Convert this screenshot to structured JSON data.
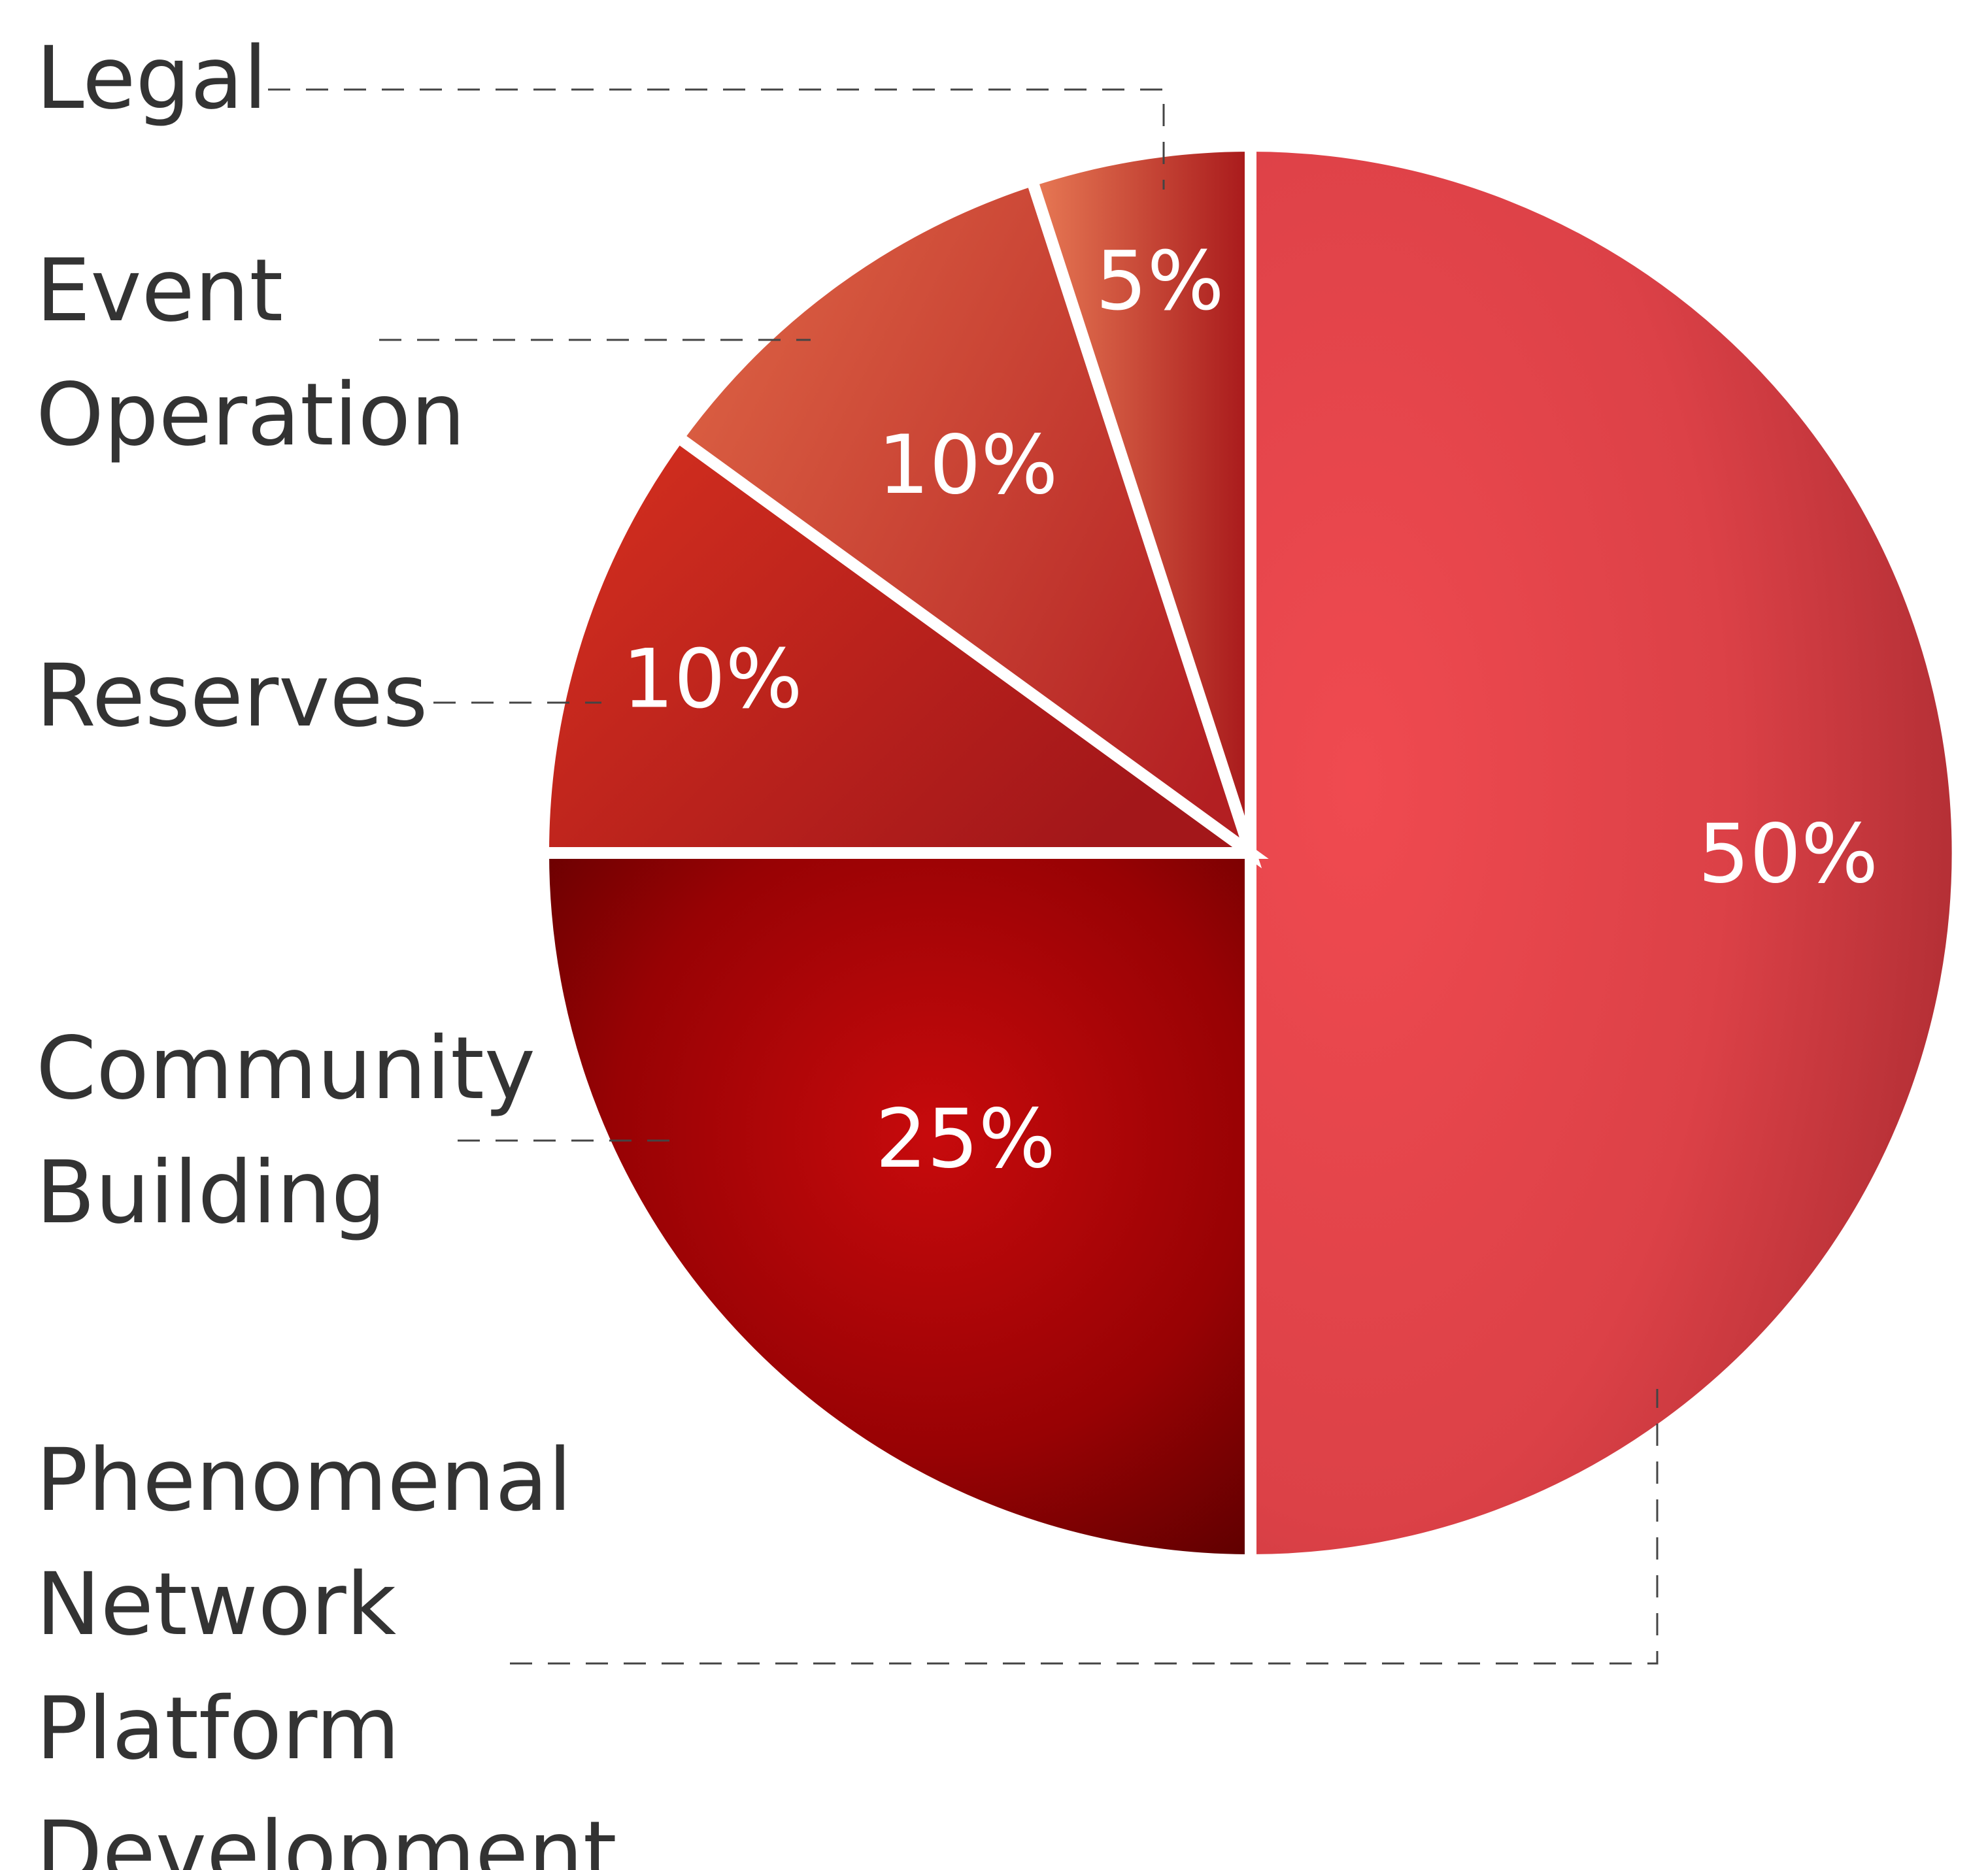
{
  "chart_data": {
    "type": "pie",
    "title": "",
    "categories": [
      "Phenomenal Network Platform Development",
      "Community Building",
      "Reserves",
      "Event Operation",
      "Legal"
    ],
    "values": [
      50,
      25,
      10,
      10,
      5
    ],
    "value_labels": [
      "50%",
      "25%",
      "10%",
      "10%",
      "5%"
    ],
    "category_lines": [
      [
        "Phenomenal",
        "Network",
        "Platform",
        "Development"
      ],
      [
        "Community",
        "Building"
      ],
      [
        "Reserves"
      ],
      [
        "Event",
        "Operation"
      ],
      [
        "Legal"
      ]
    ],
    "colors": [
      "#e5474d",
      "#b80508",
      "#c11f1b",
      "#c94232",
      "#cf4b32"
    ],
    "start_angle": "12 o'clock",
    "direction": "clockwise",
    "legend": "left, with dashed leader lines"
  }
}
